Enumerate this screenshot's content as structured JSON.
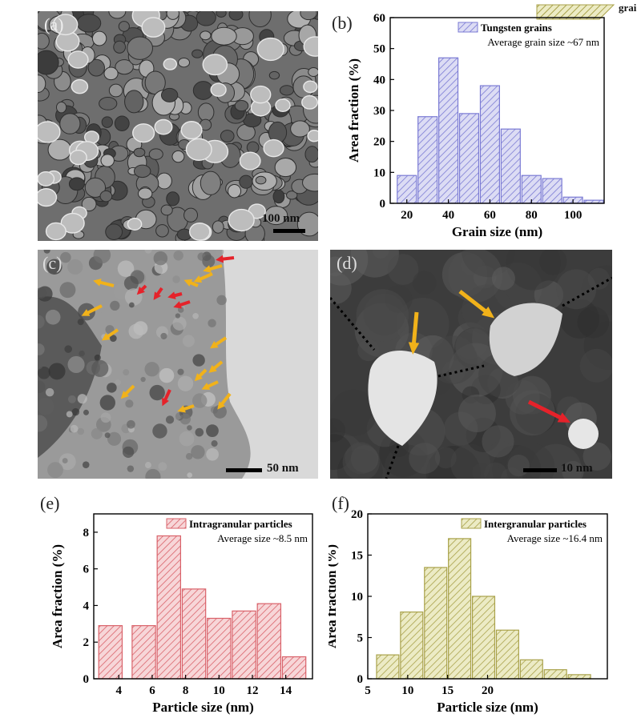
{
  "panels": {
    "a": {
      "label": "(a)",
      "scale": "100 nm"
    },
    "b": {
      "label": "(b)"
    },
    "c": {
      "label": "(c)",
      "scale": "50 nm"
    },
    "d": {
      "label": "(d)",
      "scale": "10 nm"
    },
    "e": {
      "label": "(e)"
    },
    "f": {
      "label": "(f)"
    }
  },
  "top_legend_fragment": "grai",
  "colors": {
    "tungsten": "#7b7bd4",
    "tungsten_fill": "#dcdcf4",
    "intra": "#d9626a",
    "intra_fill": "#f7d6d8",
    "inter": "#a9a24a",
    "inter_fill": "#ecebc5",
    "arrow_yellow": "#f1b21a",
    "arrow_red": "#e5222a"
  },
  "chart_data": [
    {
      "id": "b",
      "type": "bar",
      "x": [
        20,
        30,
        40,
        50,
        60,
        70,
        80,
        90,
        100,
        110
      ],
      "values": [
        9,
        28,
        47,
        29,
        38,
        24,
        9,
        8,
        2,
        1
      ],
      "bin_width": 10,
      "series_name": "Tungsten grains",
      "annotation": "Average grain size ~67 nm",
      "xlabel": "Grain size (nm)",
      "ylabel": "Area fraction (%)",
      "xlim": [
        12,
        115
      ],
      "ylim": [
        0,
        60
      ],
      "xticks": [
        20,
        40,
        60,
        80,
        100
      ],
      "yticks": [
        0,
        10,
        20,
        30,
        40,
        50,
        60
      ],
      "legend": "top-right"
    },
    {
      "id": "e",
      "type": "bar",
      "x": [
        3.5,
        5.5,
        7,
        8.5,
        10,
        11.5,
        13,
        14.5
      ],
      "values": [
        2.9,
        2.9,
        7.8,
        4.9,
        3.3,
        3.7,
        4.1,
        1.2
      ],
      "bin_width": 1.5,
      "series_name": "Intragranular particles",
      "annotation": "Average size ~8.5 nm",
      "xlabel": "Particle size (nm)",
      "ylabel": "Area fraction (%)",
      "xlim": [
        2.5,
        15.6
      ],
      "ylim": [
        0,
        9
      ],
      "xticks": [
        4,
        6,
        8,
        10,
        12,
        14
      ],
      "yticks": [
        0,
        2,
        4,
        6,
        8
      ],
      "legend": "top-right"
    },
    {
      "id": "f",
      "type": "bar",
      "x": [
        7.5,
        10.5,
        13.5,
        16.5,
        19.5,
        22.5,
        25.5,
        28.5,
        31.5
      ],
      "values": [
        2.9,
        8.1,
        13.5,
        17,
        10,
        5.9,
        2.3,
        1.1,
        0.5
      ],
      "bin_width": 3,
      "series_name": "Intergranular particles",
      "annotation": "Average size ~16.4 nm",
      "xlabel": "Particle size (nm)",
      "ylabel": "Area fraction (%)",
      "xlim": [
        5,
        35
      ],
      "ylim": [
        0,
        20
      ],
      "xticks": [
        5,
        10,
        15,
        20
      ],
      "yticks": [
        0,
        5,
        10,
        15,
        20
      ],
      "legend": "top-right"
    }
  ]
}
